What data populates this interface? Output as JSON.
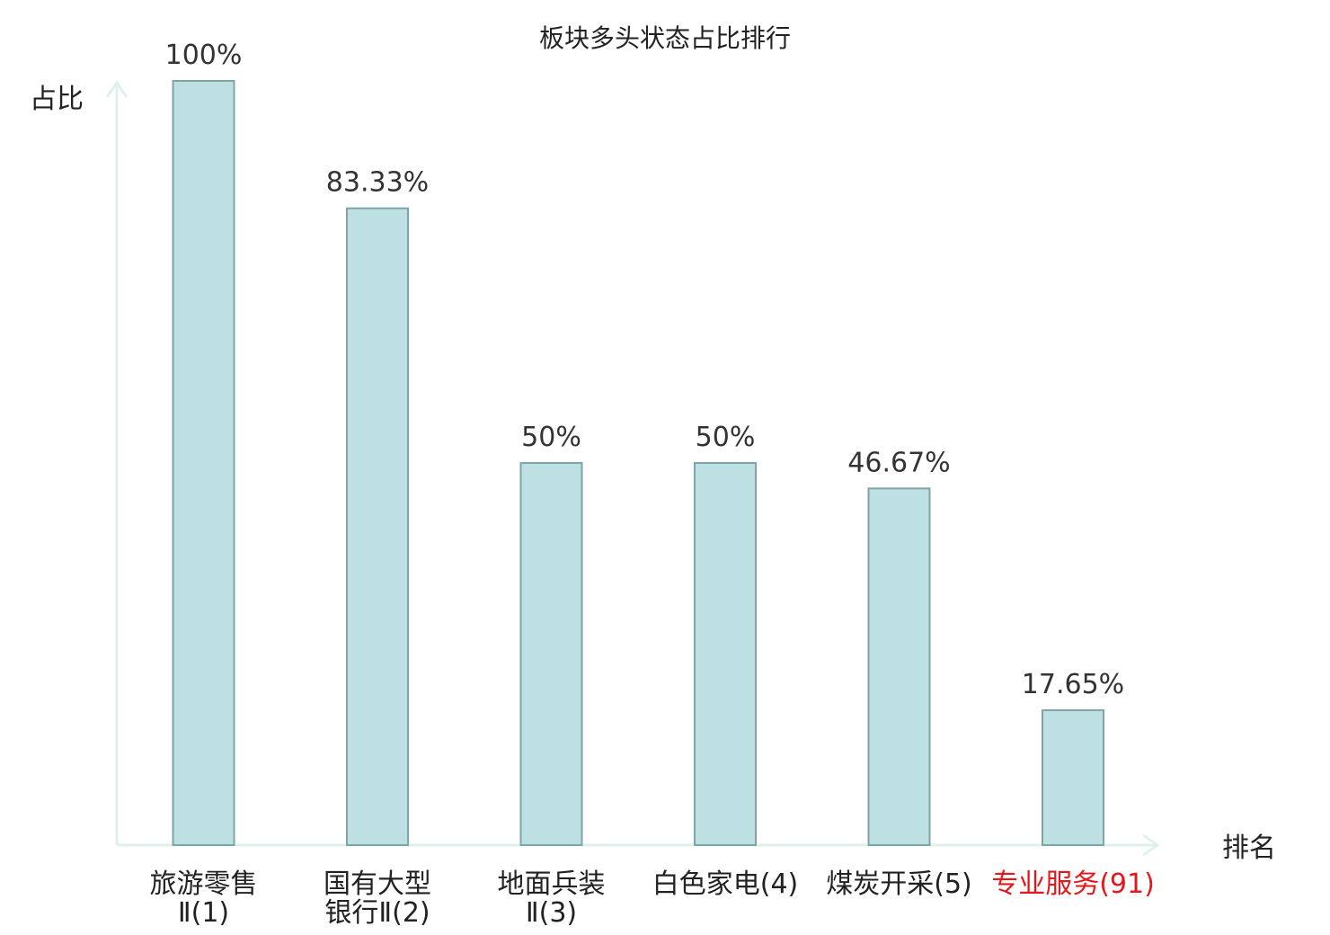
{
  "colors": {
    "bar_fill": "#bde0e2",
    "bar_stroke": "#7fa5a7",
    "axis": "#dff1ee",
    "text": "#333333",
    "highlight": "#e8161a"
  },
  "chart_data": {
    "type": "bar",
    "title": "板块多头状态占比排行",
    "xlabel": "排名",
    "ylabel": "占比",
    "ylim": [
      0,
      100
    ],
    "grid": false,
    "categories": [
      [
        "旅游零售",
        "Ⅱ(1)"
      ],
      [
        "国有大型",
        "银行Ⅱ(2)"
      ],
      [
        "地面兵装",
        "Ⅱ(3)"
      ],
      [
        "白色家电(4)"
      ],
      [
        "煤炭开采(5)"
      ],
      [
        "专业服务(91)"
      ]
    ],
    "values": [
      100,
      83.33,
      50,
      50,
      46.67,
      17.65
    ],
    "value_labels": [
      "100%",
      "83.33%",
      "50%",
      "50%",
      "46.67%",
      "17.65%"
    ],
    "highlighted_categories": [
      5
    ]
  }
}
